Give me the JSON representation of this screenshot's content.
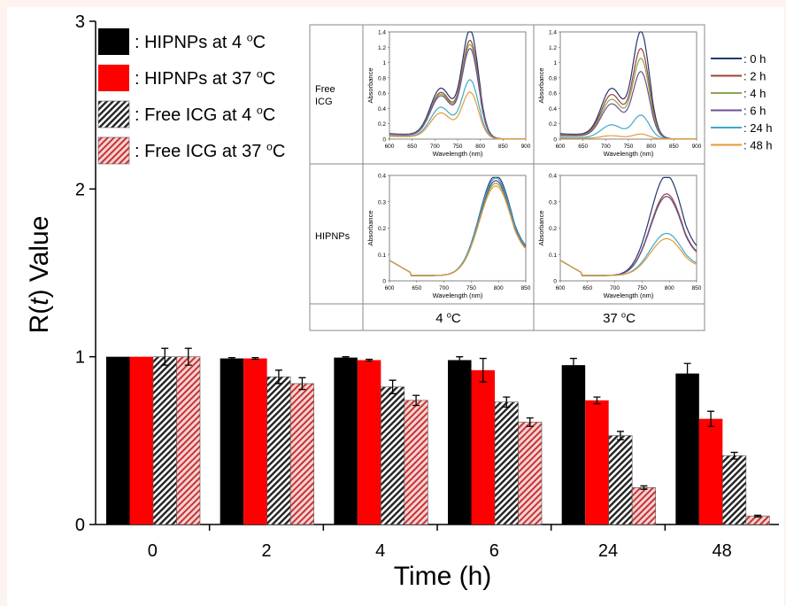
{
  "chart_data": [
    {
      "type": "bar",
      "xlabel": "Time (h)",
      "ylabel_prefix": "R(",
      "ylabel_italic": "t",
      "ylabel_suffix": ") Value",
      "categories": [
        "0",
        "2",
        "4",
        "6",
        "24",
        "48"
      ],
      "ylim": [
        0,
        3
      ],
      "yticks": [
        "0",
        "1",
        "2",
        "3"
      ],
      "legend_position": "top-left",
      "series": [
        {
          "name": ": HIPNPs at 4 oC",
          "color": "#000000",
          "pattern": "solid",
          "values": [
            1.0,
            0.99,
            0.995,
            0.98,
            0.95,
            0.9
          ],
          "errors": [
            0.0,
            0.005,
            0.005,
            0.02,
            0.04,
            0.06
          ]
        },
        {
          "name": ": HIPNPs at 37 oC",
          "color": "#ff0000",
          "pattern": "solid",
          "values": [
            1.0,
            0.99,
            0.98,
            0.92,
            0.74,
            0.63
          ],
          "errors": [
            0.0,
            0.005,
            0.005,
            0.07,
            0.02,
            0.045
          ]
        },
        {
          "name": ": Free ICG at 4 oC",
          "color": "#000000",
          "pattern": "hatch-dark",
          "values": [
            1.0,
            0.88,
            0.82,
            0.73,
            0.53,
            0.41
          ],
          "errors": [
            0.05,
            0.04,
            0.04,
            0.03,
            0.025,
            0.02
          ]
        },
        {
          "name": ": Free ICG at 37 oC",
          "color": "#cc3333",
          "pattern": "hatch-red",
          "values": [
            1.0,
            0.84,
            0.74,
            0.61,
            0.22,
            0.05
          ],
          "errors": [
            0.05,
            0.035,
            0.03,
            0.025,
            0.01,
            0.005
          ]
        }
      ]
    },
    {
      "type": "line",
      "panel": "Free ICG, 4 oC",
      "xlabel": "Wavelength (nm)",
      "ylabel": "Absorbance",
      "xlim": [
        600,
        900
      ],
      "ylim": [
        0,
        1.4
      ],
      "xticks": [
        "600",
        "650",
        "700",
        "750",
        "800",
        "850",
        "900"
      ],
      "yticks": [
        "0",
        "0.2",
        "0.4",
        "0.6",
        "0.8",
        "1",
        "1.2",
        "1.4"
      ],
      "peaks": {
        "0 h": [
          0.62,
          1.33
        ],
        "2 h": [
          0.57,
          1.2
        ],
        "4 h": [
          0.55,
          1.15
        ],
        "6 h": [
          0.53,
          1.1
        ],
        "24 h": [
          0.4,
          0.72
        ],
        "48 h": [
          0.33,
          0.57
        ]
      }
    },
    {
      "type": "line",
      "panel": "Free ICG, 37 oC",
      "xlabel": "Wavelength (nm)",
      "ylabel": "Absorbance",
      "xlim": [
        600,
        900
      ],
      "ylim": [
        0,
        1.4
      ],
      "xticks": [
        "600",
        "650",
        "700",
        "750",
        "800",
        "850",
        "900"
      ],
      "yticks": [
        "0",
        "0.2",
        "0.4",
        "0.6",
        "0.8",
        "1",
        "1.2",
        "1.4"
      ],
      "peaks": {
        "0 h": [
          0.62,
          1.31
        ],
        "2 h": [
          0.55,
          1.1
        ],
        "4 h": [
          0.49,
          0.98
        ],
        "6 h": [
          0.44,
          0.82
        ],
        "24 h": [
          0.18,
          0.29
        ],
        "48 h": [
          0.04,
          0.06
        ]
      }
    },
    {
      "type": "line",
      "panel": "HIPNPs, 4 oC",
      "xlabel": "Wavelength (nm)",
      "ylabel": "Absorbance",
      "xlim": [
        600,
        850
      ],
      "ylim": [
        0,
        0.4
      ],
      "xticks": [
        "600",
        "650",
        "700",
        "750",
        "800",
        "850"
      ],
      "yticks": [
        "0",
        "0.1",
        "0.2",
        "0.3",
        "0.4"
      ],
      "peaks": {
        "0 h": [
          0.38
        ],
        "2 h": [
          0.36
        ],
        "4 h": [
          0.35
        ],
        "6 h": [
          0.36
        ],
        "24 h": [
          0.37
        ],
        "48 h": [
          0.34
        ]
      }
    },
    {
      "type": "line",
      "panel": "HIPNPs, 37 oC",
      "xlabel": "Wavelength (nm)",
      "ylabel": "Absorbance",
      "xlim": [
        600,
        850
      ],
      "ylim": [
        0,
        0.4
      ],
      "xticks": [
        "600",
        "650",
        "700",
        "750",
        "800",
        "850"
      ],
      "yticks": [
        "0",
        "0.1",
        "0.2",
        "0.3",
        "0.4"
      ],
      "peaks": {
        "0 h": [
          0.38
        ],
        "2 h": [
          0.31
        ],
        "4 h": [
          0.3
        ],
        "6 h": [
          0.3
        ],
        "24 h": [
          0.16
        ],
        "48 h": [
          0.14
        ]
      }
    }
  ],
  "inset": {
    "row_labels": [
      "Free\nICG",
      "HIPNPs"
    ],
    "col_labels": [
      "4 oC",
      "37 oC"
    ],
    "legend": [
      {
        "label": ": 0 h",
        "color": "#1f3a6e"
      },
      {
        "label": ": 2 h",
        "color": "#a0403c"
      },
      {
        "label": ": 4 h",
        "color": "#8aa84a"
      },
      {
        "label": ": 6 h",
        "color": "#6b4e96"
      },
      {
        "label": ": 24 h",
        "color": "#3fa9c4"
      },
      {
        "label": ": 48 h",
        "color": "#e59a3a"
      }
    ]
  }
}
